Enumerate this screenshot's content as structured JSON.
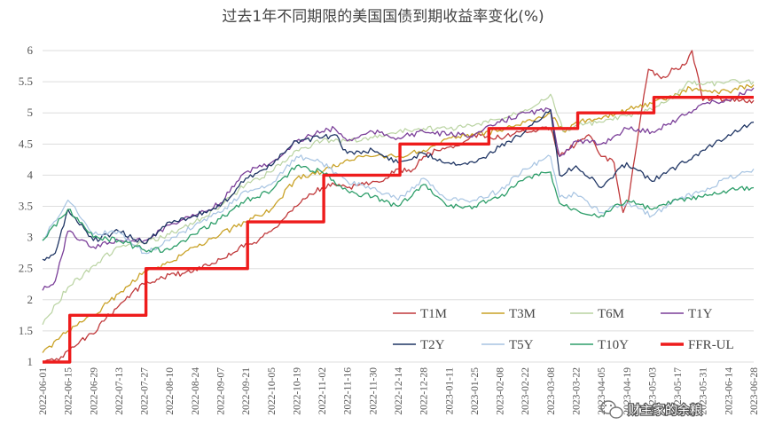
{
  "chart_data": {
    "type": "line",
    "title": "过去1年不同期限的美国国债到期收益率变化(%)",
    "ylim": [
      1,
      6.1
    ],
    "yticks": [
      "1",
      "1.5",
      "2",
      "2.5",
      "3",
      "3.5",
      "4",
      "4.5",
      "5",
      "5.5",
      "6"
    ],
    "grid": "horizontal",
    "legend_position": "bottom-right",
    "x_start": "2022-06-01",
    "x_end": "2023-06-28",
    "x_ticks": [
      "2022-06-01",
      "2022-06-15",
      "2022-06-29",
      "2022-07-13",
      "2022-07-27",
      "2022-08-10",
      "2022-08-24",
      "2022-09-07",
      "2022-09-21",
      "2022-10-05",
      "2022-10-19",
      "2022-11-02",
      "2022-11-16",
      "2022-11-30",
      "2022-12-14",
      "2022-12-28",
      "2023-01-11",
      "2023-01-25",
      "2023-02-08",
      "2023-02-22",
      "2023-03-08",
      "2023-03-22",
      "2023-04-05",
      "2023-04-19",
      "2023-05-03",
      "2023-05-17",
      "2023-05-31",
      "2023-06-14",
      "2023-06-28"
    ],
    "series": [
      {
        "name": "T1M",
        "color": "#c0393b",
        "width": 1.3,
        "points": [
          [
            "2022-06-01",
            1.0
          ],
          [
            "2022-06-10",
            1.03
          ],
          [
            "2022-06-16",
            1.2
          ],
          [
            "2022-06-22",
            1.35
          ],
          [
            "2022-06-29",
            1.45
          ],
          [
            "2022-07-06",
            1.7
          ],
          [
            "2022-07-13",
            1.9
          ],
          [
            "2022-07-20",
            2.1
          ],
          [
            "2022-07-27",
            2.25
          ],
          [
            "2022-08-03",
            2.33
          ],
          [
            "2022-08-10",
            2.4
          ],
          [
            "2022-08-17",
            2.42
          ],
          [
            "2022-08-24",
            2.5
          ],
          [
            "2022-08-31",
            2.55
          ],
          [
            "2022-09-07",
            2.65
          ],
          [
            "2022-09-14",
            2.75
          ],
          [
            "2022-09-21",
            2.9
          ],
          [
            "2022-09-28",
            2.95
          ],
          [
            "2022-10-05",
            3.1
          ],
          [
            "2022-10-12",
            3.3
          ],
          [
            "2022-10-19",
            3.5
          ],
          [
            "2022-10-26",
            3.7
          ],
          [
            "2022-11-02",
            3.8
          ],
          [
            "2022-11-09",
            3.85
          ],
          [
            "2022-11-16",
            3.8
          ],
          [
            "2022-11-23",
            3.85
          ],
          [
            "2022-11-30",
            3.9
          ],
          [
            "2022-12-07",
            3.95
          ],
          [
            "2022-12-14",
            4.1
          ],
          [
            "2022-12-21",
            4.05
          ],
          [
            "2022-12-28",
            4.3
          ],
          [
            "2023-01-04",
            4.4
          ],
          [
            "2023-01-11",
            4.45
          ],
          [
            "2023-01-18",
            4.5
          ],
          [
            "2023-01-25",
            4.65
          ],
          [
            "2023-02-01",
            4.62
          ],
          [
            "2023-02-08",
            4.6
          ],
          [
            "2023-02-15",
            4.65
          ],
          [
            "2023-02-22",
            4.7
          ],
          [
            "2023-03-01",
            4.72
          ],
          [
            "2023-03-08",
            4.75
          ],
          [
            "2023-03-13",
            4.3
          ],
          [
            "2023-03-22",
            4.5
          ],
          [
            "2023-03-29",
            4.65
          ],
          [
            "2023-04-05",
            4.3
          ],
          [
            "2023-04-12",
            4.2
          ],
          [
            "2023-04-17",
            3.4
          ],
          [
            "2023-04-20",
            3.6
          ],
          [
            "2023-04-26",
            4.8
          ],
          [
            "2023-05-01",
            5.7
          ],
          [
            "2023-05-08",
            5.55
          ],
          [
            "2023-05-15",
            5.7
          ],
          [
            "2023-05-22",
            5.8
          ],
          [
            "2023-05-25",
            6.0
          ],
          [
            "2023-05-31",
            5.2
          ],
          [
            "2023-06-07",
            5.25
          ],
          [
            "2023-06-14",
            5.2
          ],
          [
            "2023-06-21",
            5.2
          ],
          [
            "2023-06-28",
            5.2
          ]
        ]
      },
      {
        "name": "T3M",
        "color": "#c9a227",
        "width": 1.3,
        "points": [
          [
            "2022-06-01",
            1.15
          ],
          [
            "2022-06-15",
            1.5
          ],
          [
            "2022-06-29",
            1.75
          ],
          [
            "2022-07-13",
            2.1
          ],
          [
            "2022-07-27",
            2.45
          ],
          [
            "2022-08-10",
            2.6
          ],
          [
            "2022-08-24",
            2.85
          ],
          [
            "2022-09-07",
            3.05
          ],
          [
            "2022-09-21",
            3.25
          ],
          [
            "2022-10-05",
            3.45
          ],
          [
            "2022-10-19",
            3.95
          ],
          [
            "2022-11-02",
            4.05
          ],
          [
            "2022-11-16",
            4.25
          ],
          [
            "2022-11-30",
            4.3
          ],
          [
            "2022-12-14",
            4.3
          ],
          [
            "2022-12-28",
            4.4
          ],
          [
            "2023-01-11",
            4.6
          ],
          [
            "2023-01-25",
            4.65
          ],
          [
            "2023-02-08",
            4.72
          ],
          [
            "2023-02-22",
            4.85
          ],
          [
            "2023-03-08",
            5.0
          ],
          [
            "2023-03-15",
            4.7
          ],
          [
            "2023-03-22",
            4.85
          ],
          [
            "2023-04-05",
            4.9
          ],
          [
            "2023-04-19",
            5.05
          ],
          [
            "2023-05-03",
            5.15
          ],
          [
            "2023-05-17",
            5.3
          ],
          [
            "2023-05-24",
            5.4
          ],
          [
            "2023-05-31",
            5.35
          ],
          [
            "2023-06-14",
            5.35
          ],
          [
            "2023-06-28",
            5.45
          ]
        ]
      },
      {
        "name": "T6M",
        "color": "#b9d3a1",
        "width": 1.2,
        "points": [
          [
            "2022-06-01",
            1.6
          ],
          [
            "2022-06-15",
            2.2
          ],
          [
            "2022-06-29",
            2.55
          ],
          [
            "2022-07-13",
            2.85
          ],
          [
            "2022-07-27",
            2.9
          ],
          [
            "2022-08-10",
            3.05
          ],
          [
            "2022-08-24",
            3.25
          ],
          [
            "2022-09-07",
            3.5
          ],
          [
            "2022-09-21",
            3.85
          ],
          [
            "2022-10-05",
            4.05
          ],
          [
            "2022-10-19",
            4.4
          ],
          [
            "2022-11-02",
            4.55
          ],
          [
            "2022-11-16",
            4.55
          ],
          [
            "2022-11-30",
            4.6
          ],
          [
            "2022-12-14",
            4.7
          ],
          [
            "2022-12-28",
            4.75
          ],
          [
            "2023-01-11",
            4.75
          ],
          [
            "2023-01-25",
            4.8
          ],
          [
            "2023-02-08",
            4.9
          ],
          [
            "2023-02-22",
            5.05
          ],
          [
            "2023-03-08",
            5.3
          ],
          [
            "2023-03-15",
            4.7
          ],
          [
            "2023-03-22",
            4.8
          ],
          [
            "2023-04-05",
            4.85
          ],
          [
            "2023-04-19",
            4.95
          ],
          [
            "2023-05-03",
            5.05
          ],
          [
            "2023-05-17",
            5.3
          ],
          [
            "2023-05-24",
            5.5
          ],
          [
            "2023-05-31",
            5.45
          ],
          [
            "2023-06-14",
            5.5
          ],
          [
            "2023-06-28",
            5.5
          ]
        ]
      },
      {
        "name": "T1Y",
        "color": "#7b3f99",
        "width": 1.3,
        "points": [
          [
            "2022-06-01",
            2.15
          ],
          [
            "2022-06-08",
            2.3
          ],
          [
            "2022-06-15",
            3.1
          ],
          [
            "2022-06-29",
            2.85
          ],
          [
            "2022-07-13",
            2.95
          ],
          [
            "2022-07-27",
            2.95
          ],
          [
            "2022-08-10",
            3.2
          ],
          [
            "2022-08-24",
            3.35
          ],
          [
            "2022-09-07",
            3.55
          ],
          [
            "2022-09-21",
            4.05
          ],
          [
            "2022-10-05",
            4.2
          ],
          [
            "2022-10-19",
            4.55
          ],
          [
            "2022-11-02",
            4.7
          ],
          [
            "2022-11-09",
            4.75
          ],
          [
            "2022-11-16",
            4.55
          ],
          [
            "2022-11-30",
            4.7
          ],
          [
            "2022-12-14",
            4.6
          ],
          [
            "2022-12-28",
            4.7
          ],
          [
            "2023-01-11",
            4.65
          ],
          [
            "2023-01-25",
            4.65
          ],
          [
            "2023-02-08",
            4.85
          ],
          [
            "2023-02-22",
            5.0
          ],
          [
            "2023-03-08",
            5.05
          ],
          [
            "2023-03-13",
            4.3
          ],
          [
            "2023-03-22",
            4.55
          ],
          [
            "2023-04-05",
            4.5
          ],
          [
            "2023-04-19",
            4.75
          ],
          [
            "2023-05-03",
            4.7
          ],
          [
            "2023-05-17",
            4.9
          ],
          [
            "2023-05-31",
            5.15
          ],
          [
            "2023-06-14",
            5.2
          ],
          [
            "2023-06-28",
            5.4
          ]
        ]
      },
      {
        "name": "T2Y",
        "color": "#1f3564",
        "width": 1.3,
        "points": [
          [
            "2022-06-01",
            2.65
          ],
          [
            "2022-06-08",
            2.75
          ],
          [
            "2022-06-15",
            3.45
          ],
          [
            "2022-06-29",
            2.95
          ],
          [
            "2022-07-13",
            3.1
          ],
          [
            "2022-07-27",
            2.9
          ],
          [
            "2022-08-10",
            3.25
          ],
          [
            "2022-08-24",
            3.35
          ],
          [
            "2022-09-07",
            3.5
          ],
          [
            "2022-09-21",
            3.95
          ],
          [
            "2022-10-05",
            4.15
          ],
          [
            "2022-10-19",
            4.55
          ],
          [
            "2022-11-02",
            4.6
          ],
          [
            "2022-11-09",
            4.65
          ],
          [
            "2022-11-16",
            4.35
          ],
          [
            "2022-11-30",
            4.4
          ],
          [
            "2022-12-14",
            4.2
          ],
          [
            "2022-12-28",
            4.35
          ],
          [
            "2023-01-11",
            4.2
          ],
          [
            "2023-01-25",
            4.2
          ],
          [
            "2023-02-08",
            4.45
          ],
          [
            "2023-02-22",
            4.7
          ],
          [
            "2023-03-08",
            5.05
          ],
          [
            "2023-03-13",
            4.0
          ],
          [
            "2023-03-22",
            4.15
          ],
          [
            "2023-04-05",
            3.8
          ],
          [
            "2023-04-19",
            4.2
          ],
          [
            "2023-05-03",
            3.9
          ],
          [
            "2023-05-17",
            4.15
          ],
          [
            "2023-05-31",
            4.4
          ],
          [
            "2023-06-14",
            4.65
          ],
          [
            "2023-06-28",
            4.85
          ]
        ]
      },
      {
        "name": "T5Y",
        "color": "#a7c4e2",
        "width": 1.2,
        "points": [
          [
            "2022-06-01",
            2.95
          ],
          [
            "2022-06-15",
            3.6
          ],
          [
            "2022-06-29",
            3.05
          ],
          [
            "2022-07-13",
            3.1
          ],
          [
            "2022-07-27",
            2.75
          ],
          [
            "2022-08-10",
            2.95
          ],
          [
            "2022-08-24",
            3.2
          ],
          [
            "2022-09-07",
            3.4
          ],
          [
            "2022-09-21",
            3.75
          ],
          [
            "2022-10-05",
            3.85
          ],
          [
            "2022-10-19",
            4.3
          ],
          [
            "2022-11-02",
            4.2
          ],
          [
            "2022-11-16",
            3.9
          ],
          [
            "2022-11-30",
            3.8
          ],
          [
            "2022-12-14",
            3.6
          ],
          [
            "2022-12-28",
            3.95
          ],
          [
            "2023-01-11",
            3.6
          ],
          [
            "2023-01-25",
            3.6
          ],
          [
            "2023-02-08",
            3.75
          ],
          [
            "2023-02-22",
            4.1
          ],
          [
            "2023-03-08",
            4.3
          ],
          [
            "2023-03-13",
            3.65
          ],
          [
            "2023-03-22",
            3.7
          ],
          [
            "2023-04-05",
            3.4
          ],
          [
            "2023-04-19",
            3.55
          ],
          [
            "2023-05-03",
            3.35
          ],
          [
            "2023-05-17",
            3.6
          ],
          [
            "2023-05-31",
            3.75
          ],
          [
            "2023-06-14",
            3.95
          ],
          [
            "2023-06-28",
            4.1
          ]
        ]
      },
      {
        "name": "T10Y",
        "color": "#2e9e6a",
        "width": 1.3,
        "points": [
          [
            "2022-06-01",
            2.95
          ],
          [
            "2022-06-15",
            3.45
          ],
          [
            "2022-06-29",
            3.0
          ],
          [
            "2022-07-13",
            2.95
          ],
          [
            "2022-07-27",
            2.8
          ],
          [
            "2022-08-10",
            2.8
          ],
          [
            "2022-08-24",
            3.05
          ],
          [
            "2022-09-07",
            3.3
          ],
          [
            "2022-09-21",
            3.6
          ],
          [
            "2022-10-05",
            3.75
          ],
          [
            "2022-10-19",
            4.15
          ],
          [
            "2022-11-02",
            4.05
          ],
          [
            "2022-11-16",
            3.75
          ],
          [
            "2022-11-30",
            3.65
          ],
          [
            "2022-12-14",
            3.5
          ],
          [
            "2022-12-28",
            3.85
          ],
          [
            "2023-01-11",
            3.5
          ],
          [
            "2023-01-25",
            3.5
          ],
          [
            "2023-02-08",
            3.65
          ],
          [
            "2023-02-22",
            3.95
          ],
          [
            "2023-03-08",
            4.05
          ],
          [
            "2023-03-13",
            3.55
          ],
          [
            "2023-03-22",
            3.45
          ],
          [
            "2023-04-05",
            3.35
          ],
          [
            "2023-04-19",
            3.6
          ],
          [
            "2023-05-03",
            3.45
          ],
          [
            "2023-05-17",
            3.6
          ],
          [
            "2023-05-31",
            3.65
          ],
          [
            "2023-06-14",
            3.75
          ],
          [
            "2023-06-28",
            3.8
          ]
        ]
      },
      {
        "name": "FFR-UL",
        "color": "#ee1c1c",
        "width": 3.4,
        "step": true,
        "points": [
          [
            "2022-06-01",
            1.0
          ],
          [
            "2022-06-16",
            1.75
          ],
          [
            "2022-07-28",
            2.5
          ],
          [
            "2022-09-22",
            3.25
          ],
          [
            "2022-11-03",
            4.0
          ],
          [
            "2022-12-15",
            4.5
          ],
          [
            "2023-02-02",
            4.75
          ],
          [
            "2023-03-23",
            5.0
          ],
          [
            "2023-05-04",
            5.25
          ],
          [
            "2023-06-28",
            5.25
          ]
        ]
      }
    ]
  },
  "watermark": {
    "text": "财主家的余粮",
    "icon": "wechat-icon"
  }
}
